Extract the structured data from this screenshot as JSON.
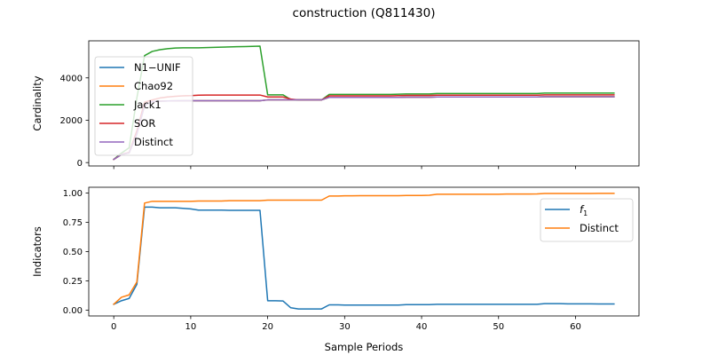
{
  "title": "construction (Q811430)",
  "chart_data": [
    {
      "type": "line",
      "title": "construction (Q811430)",
      "xlabel": "",
      "ylabel": "Cardinality",
      "xlim": [
        -3.25,
        68.25
      ],
      "ylim": [
        -160,
        5750
      ],
      "xticks": [
        0,
        10,
        20,
        30,
        40,
        50,
        60
      ],
      "yticks": [
        0,
        2000,
        4000
      ],
      "show_x_tick_labels": false,
      "grid": false,
      "legend_position": "upper-left",
      "x": [
        0,
        1,
        2,
        3,
        4,
        5,
        6,
        7,
        8,
        9,
        10,
        11,
        12,
        13,
        14,
        15,
        16,
        17,
        18,
        19,
        20,
        21,
        22,
        23,
        24,
        25,
        26,
        27,
        28,
        29,
        30,
        31,
        32,
        33,
        34,
        35,
        36,
        37,
        38,
        39,
        40,
        41,
        42,
        43,
        44,
        45,
        46,
        47,
        48,
        49,
        50,
        51,
        52,
        53,
        54,
        55,
        56,
        57,
        58,
        59,
        60,
        61,
        62,
        63,
        64,
        65
      ],
      "series": [
        {
          "name": "N1−UNIF",
          "color": "#1f77b4",
          "values": [
            150,
            380,
            460,
            1350,
            2700,
            2880,
            2900,
            2910,
            2915,
            2920,
            2920,
            2920,
            2920,
            2920,
            2920,
            2920,
            2920,
            2920,
            2920,
            2920,
            2960,
            2960,
            2960,
            2960,
            2960,
            2960,
            2960,
            2960,
            3080,
            3080,
            3080,
            3080,
            3080,
            3080,
            3080,
            3080,
            3080,
            3080,
            3090,
            3090,
            3090,
            3090,
            3100,
            3100,
            3100,
            3100,
            3100,
            3100,
            3100,
            3100,
            3100,
            3100,
            3100,
            3100,
            3100,
            3100,
            3110,
            3110,
            3110,
            3110,
            3110,
            3110,
            3110,
            3110,
            3110,
            3110
          ]
        },
        {
          "name": "Chao92",
          "color": "#ff7f0e",
          "values": [
            150,
            380,
            460,
            1350,
            2700,
            2880,
            2900,
            2910,
            2915,
            2920,
            2920,
            2920,
            2920,
            2920,
            2920,
            2920,
            2920,
            2920,
            2920,
            2920,
            2960,
            2960,
            2960,
            2960,
            2960,
            2960,
            2960,
            2960,
            3080,
            3080,
            3080,
            3080,
            3080,
            3080,
            3080,
            3080,
            3080,
            3080,
            3090,
            3090,
            3090,
            3090,
            3100,
            3100,
            3100,
            3100,
            3100,
            3100,
            3100,
            3100,
            3100,
            3100,
            3100,
            3100,
            3100,
            3100,
            3110,
            3110,
            3110,
            3110,
            3110,
            3110,
            3110,
            3110,
            3110,
            3110
          ]
        },
        {
          "name": "Jack1",
          "color": "#2ca02c",
          "values": [
            150,
            450,
            700,
            3050,
            5050,
            5250,
            5330,
            5380,
            5410,
            5420,
            5420,
            5420,
            5430,
            5440,
            5450,
            5460,
            5470,
            5480,
            5490,
            5500,
            3200,
            3200,
            3200,
            2980,
            2960,
            2960,
            2960,
            2960,
            3220,
            3220,
            3220,
            3220,
            3220,
            3220,
            3220,
            3220,
            3220,
            3230,
            3240,
            3240,
            3240,
            3240,
            3260,
            3260,
            3260,
            3260,
            3260,
            3260,
            3260,
            3260,
            3260,
            3260,
            3260,
            3260,
            3260,
            3260,
            3280,
            3280,
            3280,
            3280,
            3280,
            3280,
            3280,
            3280,
            3280,
            3280
          ]
        },
        {
          "name": "SOR",
          "color": "#d62728",
          "values": [
            150,
            390,
            480,
            1500,
            2850,
            2960,
            3050,
            3100,
            3130,
            3150,
            3160,
            3180,
            3190,
            3190,
            3190,
            3190,
            3190,
            3190,
            3190,
            3190,
            3100,
            3100,
            3100,
            3000,
            2960,
            2960,
            2960,
            2960,
            3150,
            3150,
            3150,
            3150,
            3150,
            3150,
            3150,
            3150,
            3150,
            3160,
            3170,
            3170,
            3170,
            3170,
            3180,
            3180,
            3180,
            3180,
            3180,
            3180,
            3180,
            3180,
            3180,
            3180,
            3180,
            3180,
            3180,
            3180,
            3200,
            3200,
            3200,
            3200,
            3200,
            3200,
            3200,
            3200,
            3200,
            3200
          ]
        },
        {
          "name": "Distinct",
          "color": "#9467bd",
          "values": [
            150,
            380,
            460,
            1350,
            2700,
            2880,
            2900,
            2910,
            2915,
            2920,
            2920,
            2920,
            2920,
            2920,
            2920,
            2920,
            2920,
            2920,
            2920,
            2920,
            2960,
            2960,
            2960,
            2960,
            2960,
            2960,
            2960,
            2960,
            3080,
            3080,
            3080,
            3080,
            3080,
            3080,
            3080,
            3080,
            3080,
            3080,
            3090,
            3090,
            3090,
            3090,
            3100,
            3100,
            3100,
            3100,
            3100,
            3100,
            3100,
            3100,
            3100,
            3100,
            3100,
            3100,
            3100,
            3100,
            3110,
            3110,
            3110,
            3110,
            3110,
            3110,
            3110,
            3110,
            3110,
            3110
          ]
        }
      ]
    },
    {
      "type": "line",
      "title": "",
      "xlabel": "Sample Periods",
      "ylabel": "Indicators",
      "xlim": [
        -3.25,
        68.25
      ],
      "ylim": [
        -0.05,
        1.05
      ],
      "xticks": [
        0,
        10,
        20,
        30,
        40,
        50,
        60
      ],
      "yticks": [
        0.0,
        0.25,
        0.5,
        0.75,
        1.0
      ],
      "ytick_labels": [
        "0.00",
        "0.25",
        "0.50",
        "0.75",
        "1.00"
      ],
      "show_x_tick_labels": true,
      "grid": false,
      "legend_position": "upper-right",
      "x": [
        0,
        1,
        2,
        3,
        4,
        5,
        6,
        7,
        8,
        9,
        10,
        11,
        12,
        13,
        14,
        15,
        16,
        17,
        18,
        19,
        20,
        21,
        22,
        23,
        24,
        25,
        26,
        27,
        28,
        29,
        30,
        31,
        32,
        33,
        34,
        35,
        36,
        37,
        38,
        39,
        40,
        41,
        42,
        43,
        44,
        45,
        46,
        47,
        48,
        49,
        50,
        51,
        52,
        53,
        54,
        55,
        56,
        57,
        58,
        59,
        60,
        61,
        62,
        63,
        64,
        65
      ],
      "series": [
        {
          "name_prefix": "f",
          "name_subscript": "1",
          "color": "#1f77b4",
          "values": [
            0.05,
            0.08,
            0.1,
            0.22,
            0.88,
            0.88,
            0.875,
            0.875,
            0.875,
            0.87,
            0.865,
            0.855,
            0.855,
            0.855,
            0.855,
            0.853,
            0.853,
            0.853,
            0.853,
            0.853,
            0.08,
            0.08,
            0.078,
            0.02,
            0.01,
            0.01,
            0.01,
            0.01,
            0.045,
            0.045,
            0.043,
            0.043,
            0.043,
            0.043,
            0.043,
            0.043,
            0.043,
            0.043,
            0.047,
            0.047,
            0.047,
            0.047,
            0.05,
            0.05,
            0.05,
            0.05,
            0.05,
            0.05,
            0.05,
            0.05,
            0.05,
            0.05,
            0.05,
            0.05,
            0.05,
            0.05,
            0.055,
            0.055,
            0.055,
            0.053,
            0.053,
            0.053,
            0.053,
            0.052,
            0.052,
            0.052
          ]
        },
        {
          "name": "Distinct",
          "color": "#ff7f0e",
          "values": [
            0.05,
            0.11,
            0.13,
            0.24,
            0.915,
            0.93,
            0.93,
            0.93,
            0.93,
            0.93,
            0.93,
            0.932,
            0.932,
            0.932,
            0.932,
            0.935,
            0.935,
            0.935,
            0.935,
            0.935,
            0.94,
            0.94,
            0.94,
            0.94,
            0.94,
            0.94,
            0.94,
            0.94,
            0.975,
            0.975,
            0.977,
            0.977,
            0.978,
            0.978,
            0.978,
            0.978,
            0.978,
            0.978,
            0.98,
            0.98,
            0.98,
            0.982,
            0.99,
            0.99,
            0.99,
            0.99,
            0.99,
            0.99,
            0.99,
            0.99,
            0.99,
            0.992,
            0.992,
            0.992,
            0.992,
            0.993,
            0.997,
            0.997,
            0.997,
            0.997,
            0.997,
            0.997,
            0.997,
            0.998,
            0.998,
            0.998
          ]
        }
      ]
    }
  ]
}
